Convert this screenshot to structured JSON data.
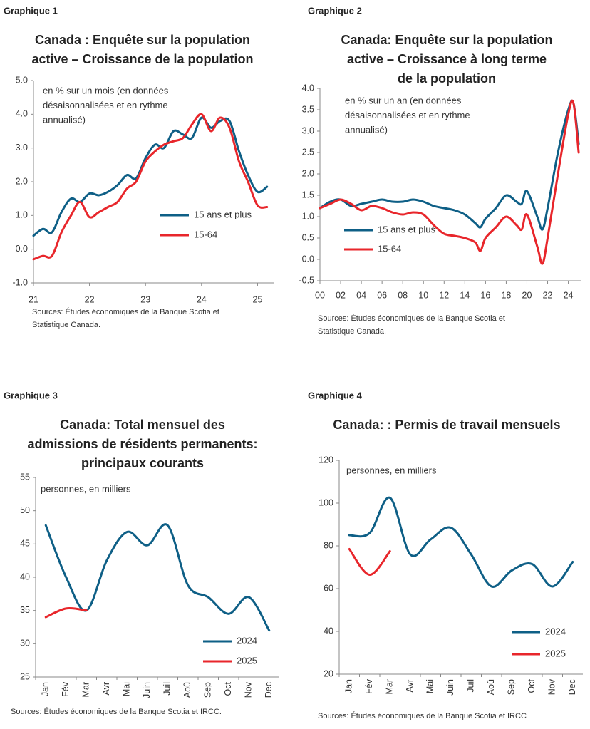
{
  "chart_data": [
    {
      "type": "line",
      "label": "Graphique 1",
      "title": [
        "Canada : Enquête sur la population",
        "active – Croissance de la population"
      ],
      "subtitle": [
        "en % sur un mois (en données",
        "désaisonnalisées et en rythme",
        "annualisé)"
      ],
      "source": [
        "Sources: Études économiques de la Banque Scotia et",
        "Statistique Canada."
      ],
      "x": [
        21,
        21.17,
        21.33,
        21.5,
        21.67,
        21.83,
        22,
        22.17,
        22.33,
        22.5,
        22.67,
        22.83,
        23,
        23.17,
        23.33,
        23.5,
        23.67,
        23.83,
        24,
        24.17,
        24.33,
        24.5,
        24.67,
        24.83,
        25,
        25.17
      ],
      "series": [
        {
          "name": "15 ans et plus",
          "color": "#0e5f86",
          "values": [
            0.4,
            0.6,
            0.5,
            1.1,
            1.5,
            1.4,
            1.65,
            1.6,
            1.7,
            1.9,
            2.2,
            2.1,
            2.7,
            3.1,
            3.0,
            3.5,
            3.4,
            3.3,
            3.9,
            3.6,
            3.8,
            3.8,
            2.9,
            2.2,
            1.7,
            1.85
          ]
        },
        {
          "name": "15-64",
          "color": "#e8262b",
          "values": [
            -0.3,
            -0.2,
            -0.2,
            0.5,
            1.0,
            1.4,
            0.95,
            1.1,
            1.25,
            1.4,
            1.8,
            2.0,
            2.6,
            2.9,
            3.1,
            3.2,
            3.3,
            3.7,
            4.0,
            3.5,
            3.9,
            3.6,
            2.6,
            2.0,
            1.3,
            1.25
          ]
        }
      ],
      "xlim": [
        21,
        25.3
      ],
      "xticks": [
        21,
        22,
        23,
        24,
        25
      ],
      "ylim": [
        -1,
        5
      ],
      "yticks": [
        {
          "value": 5,
          "label": "5.0"
        },
        {
          "value": 4,
          "label": "4.0"
        },
        {
          "value": 3,
          "label": "3.0"
        },
        {
          "value": 2,
          "label": "2.0"
        },
        {
          "value": 1,
          "label": "1.0"
        },
        {
          "value": 0,
          "label": "0.0"
        },
        {
          "value": -1,
          "label": "-1.0"
        }
      ]
    },
    {
      "type": "line",
      "label": "Graphique 2",
      "title": [
        "Canada: Enquête sur la population",
        "active –  Croissance à long terme",
        "de la population"
      ],
      "subtitle": [
        "en % sur un an (en données",
        "désaisonnalisées et en rythme",
        "annualisé)"
      ],
      "source": [
        "Sources: Études économiques de la Banque Scotia et",
        "Statistique Canada."
      ],
      "x": [
        2000,
        2001,
        2002,
        2003,
        2004,
        2005,
        2006,
        2007,
        2008,
        2009,
        2010,
        2011,
        2012,
        2013,
        2014,
        2015,
        2015.5,
        2016,
        2017,
        2018,
        2019,
        2019.5,
        2020,
        2021,
        2021.5,
        2022,
        2023,
        2024,
        2024.5,
        2025
      ],
      "series": [
        {
          "name": "15 ans et plus",
          "color": "#0e5f86",
          "values": [
            1.2,
            1.35,
            1.4,
            1.25,
            1.3,
            1.35,
            1.4,
            1.35,
            1.35,
            1.4,
            1.35,
            1.25,
            1.2,
            1.15,
            1.05,
            0.85,
            0.75,
            0.95,
            1.2,
            1.5,
            1.35,
            1.3,
            1.6,
            1.0,
            0.7,
            1.2,
            2.5,
            3.5,
            3.65,
            2.7
          ]
        },
        {
          "name": "15-64",
          "color": "#e8262b",
          "values": [
            1.2,
            1.3,
            1.4,
            1.3,
            1.15,
            1.25,
            1.2,
            1.1,
            1.05,
            1.1,
            1.05,
            0.8,
            0.6,
            0.55,
            0.5,
            0.4,
            0.2,
            0.5,
            0.75,
            1.0,
            0.8,
            0.7,
            1.05,
            0.3,
            -0.1,
            0.5,
            2.0,
            3.4,
            3.65,
            2.5
          ]
        }
      ],
      "xlim": [
        2000,
        2025.2
      ],
      "xticks": [
        {
          "value": 2000,
          "label": "00"
        },
        {
          "value": 2002,
          "label": "02"
        },
        {
          "value": 2004,
          "label": "04"
        },
        {
          "value": 2006,
          "label": "06"
        },
        {
          "value": 2008,
          "label": "08"
        },
        {
          "value": 2010,
          "label": "10"
        },
        {
          "value": 2012,
          "label": "12"
        },
        {
          "value": 2014,
          "label": "14"
        },
        {
          "value": 2016,
          "label": "16"
        },
        {
          "value": 2018,
          "label": "18"
        },
        {
          "value": 2020,
          "label": "20"
        },
        {
          "value": 2022,
          "label": "22"
        },
        {
          "value": 2024,
          "label": "24"
        }
      ],
      "ylim": [
        -0.5,
        4
      ],
      "yticks": [
        {
          "value": 4,
          "label": "4.0"
        },
        {
          "value": 3.5,
          "label": "3.5"
        },
        {
          "value": 3,
          "label": "3.0"
        },
        {
          "value": 2.5,
          "label": "2.5"
        },
        {
          "value": 2,
          "label": "2.0"
        },
        {
          "value": 1.5,
          "label": "1.5"
        },
        {
          "value": 1,
          "label": "1.0"
        },
        {
          "value": 0.5,
          "label": "0.5"
        },
        {
          "value": 0,
          "label": "0.0"
        },
        {
          "value": -0.5,
          "label": "-0.5"
        }
      ]
    },
    {
      "type": "line",
      "label": "Graphique 3",
      "title": [
        "Canada: Total mensuel des",
        "admissions de résidents permanents:",
        "principaux courants"
      ],
      "subtitle": [
        "personnes, en milliers"
      ],
      "source": [
        "Sources: Études économiques de la Banque Scotia et IRCC."
      ],
      "categories": [
        "Jan",
        "Fév",
        "Mar",
        "Avr",
        "Mai",
        "Juin",
        "Juil",
        "Aoû",
        "Sep",
        "Oct",
        "Nov",
        "Dec"
      ],
      "series": [
        {
          "name": "2024",
          "color": "#0e5f86",
          "values": [
            47.8,
            40,
            35,
            42.5,
            46.8,
            44.8,
            47.8,
            38.8,
            37,
            34.5,
            37,
            32
          ]
        },
        {
          "name": "2025",
          "color": "#e8262b",
          "values": [
            34,
            35.3,
            35,
            null,
            null,
            null,
            null,
            null,
            null,
            null,
            null,
            null
          ]
        }
      ],
      "ylim": [
        25,
        55
      ],
      "yticks": [
        55,
        50,
        45,
        40,
        35,
        30,
        25
      ]
    },
    {
      "type": "line",
      "label": "Graphique 4",
      "title": [
        "Canada: : Permis de travail mensuels"
      ],
      "subtitle": [
        "personnes, en milliers"
      ],
      "source": [
        "Sources: Études économiques de la Banque Scotia et IRCC"
      ],
      "categories": [
        "Jan",
        "Fév",
        "Mar",
        "Avr",
        "Mai",
        "Juin",
        "Juil",
        "Aoû",
        "Sep",
        "Oct",
        "Nov",
        "Dec"
      ],
      "series": [
        {
          "name": "2024",
          "color": "#0e5f86",
          "values": [
            85,
            86,
            102.5,
            76,
            83,
            88.5,
            76,
            61,
            68.5,
            71.5,
            61,
            72.5
          ]
        },
        {
          "name": "2025",
          "color": "#e8262b",
          "values": [
            78.5,
            66.5,
            77.5,
            null,
            null,
            null,
            null,
            null,
            null,
            null,
            null,
            null
          ]
        }
      ],
      "ylim": [
        20,
        120
      ],
      "yticks": [
        120,
        100,
        80,
        60,
        40,
        20
      ]
    }
  ]
}
